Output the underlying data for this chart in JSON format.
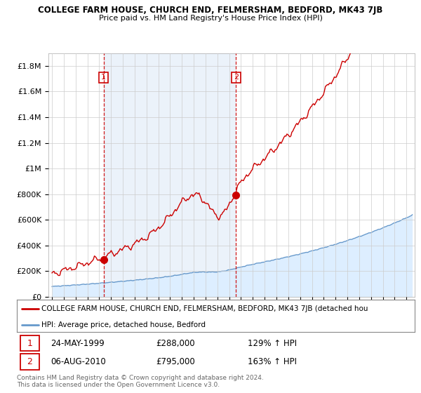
{
  "title": "COLLEGE FARM HOUSE, CHURCH END, FELMERSHAM, BEDFORD, MK43 7JB",
  "subtitle": "Price paid vs. HM Land Registry's House Price Index (HPI)",
  "ylim": [
    0,
    1900000
  ],
  "yticks": [
    0,
    200000,
    400000,
    600000,
    800000,
    1000000,
    1200000,
    1400000,
    1600000,
    1800000
  ],
  "ytick_labels": [
    "£0",
    "£200K",
    "£400K",
    "£600K",
    "£800K",
    "£1M",
    "£1.2M",
    "£1.4M",
    "£1.6M",
    "£1.8M"
  ],
  "sale1_year": 1999.375,
  "sale1_price": 288000,
  "sale1_date_str": "24-MAY-1999",
  "sale1_hpi": "129% ↑ HPI",
  "sale2_year": 2010.583,
  "sale2_price": 795000,
  "sale2_date_str": "06-AUG-2010",
  "sale2_hpi": "163% ↑ HPI",
  "red_line_color": "#cc0000",
  "blue_line_color": "#6699cc",
  "blue_fill_color": "#ddeeff",
  "shade_between_color": "#e8f0fa",
  "legend_label_red": "COLLEGE FARM HOUSE, CHURCH END, FELMERSHAM, BEDFORD, MK43 7JB (detached hou",
  "legend_label_blue": "HPI: Average price, detached house, Bedford",
  "footer": "Contains HM Land Registry data © Crown copyright and database right 2024.\nThis data is licensed under the Open Government Licence v3.0.",
  "background_color": "#ffffff",
  "grid_color": "#cccccc",
  "xmin": 1995.0,
  "xmax": 2025.5
}
